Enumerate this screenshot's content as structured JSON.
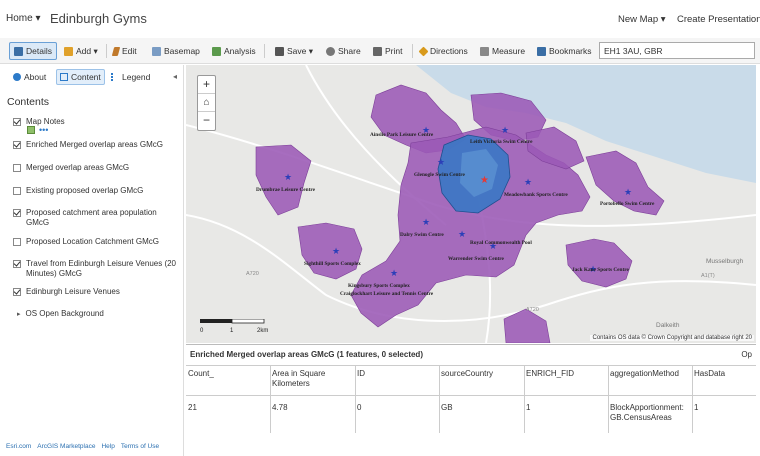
{
  "header": {
    "home_label": "Home ▾",
    "title": "Edinburgh Gyms",
    "new_map_label": "New Map ▾",
    "create_label": "Create Presentation"
  },
  "toolbar": {
    "details": "Details",
    "add": "Add ▾",
    "edit": "Edit",
    "basemap": "Basemap",
    "analysis": "Analysis",
    "save": "Save ▾",
    "share": "Share",
    "print": "Print",
    "directions": "Directions",
    "measure": "Measure",
    "bookmarks": "Bookmarks",
    "search_value": "EH1 3AU, GBR"
  },
  "panel": {
    "tabs": {
      "about": "About",
      "content": "Content",
      "legend": "Legend"
    },
    "title": "Contents",
    "layers": [
      {
        "label": "Map Notes",
        "checked": true
      },
      {
        "label": "Enriched Merged overlap areas GMcG",
        "checked": true
      },
      {
        "label": "Merged overlap areas GMcG",
        "checked": false
      },
      {
        "label": "Existing proposed overlap GMcG",
        "checked": false
      },
      {
        "label": "Proposed catchment area population GMcG",
        "checked": true
      },
      {
        "label": "Proposed Location Catchment GMcG",
        "checked": false
      },
      {
        "label": "Travel from Edinburgh Leisure Venues (20 Minutes) GMcG",
        "checked": true
      },
      {
        "label": "Edinburgh Leisure Venues",
        "checked": true
      }
    ],
    "basemap_layer": "OS Open Background",
    "footer": [
      "Esri.com",
      "ArcGIS Marketplace",
      "Help",
      "Terms of Use"
    ]
  },
  "map": {
    "attribution": "Contains OS data © Crown Copyright and database right 20",
    "scale_labels": [
      "0",
      "1",
      "2km"
    ],
    "venues": [
      "Ainslie Park Leisure Centre",
      "Leith Victoria Swim Centre",
      "Glenogle Swim Centre",
      "Meadowbank Sports Centre",
      "Portobello Swim Centre",
      "Drumbrae Leisure Centre",
      "Dalry Swim Centre",
      "Royal Commonwealth Pool",
      "Warrender Swim Centre",
      "Jack Kane Sports Centre",
      "Sighthill Sports Complex",
      "Kingsbury Sports Complex",
      "Craiglockhart Leisure and Tennis Centre"
    ],
    "place_labels": [
      "Musselburgh",
      "Dalkeith"
    ],
    "road_labels": [
      "A720",
      "A1(T)",
      "A720"
    ],
    "colors": {
      "catchment": "#9b59b6",
      "selected": "#3a78c4",
      "water": "#c9dbe9",
      "star": "#2c3fb8",
      "marker": "#e53935"
    }
  },
  "table": {
    "title": "Enriched Merged overlap areas GMcG (1 features, 0 selected)",
    "options": "Op",
    "columns": [
      "Count_",
      "Area in Square Kilometers",
      "ID",
      "sourceCountry",
      "ENRICH_FID",
      "aggregationMethod",
      "HasData"
    ],
    "rows": [
      [
        "21",
        "4.78",
        "0",
        "GB",
        "1",
        "BlockApportionment:GB.CensusAreas",
        "1"
      ]
    ]
  }
}
